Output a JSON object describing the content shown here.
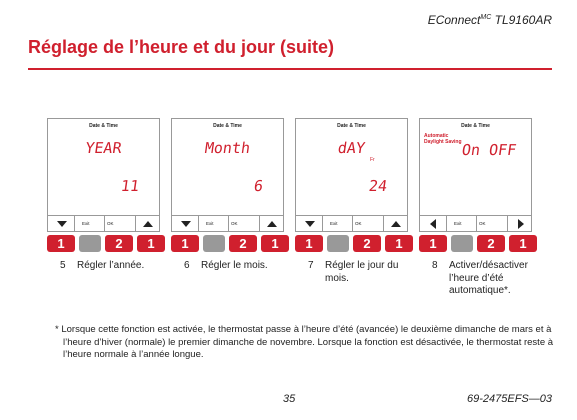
{
  "header": {
    "brand": "EConnect",
    "brand_sup": "MC",
    "model": "TL9160AR"
  },
  "title": "Réglage de l’heure et du jour (suite)",
  "panels": [
    {
      "screen_title": "Date & Time",
      "line1": "YEAR",
      "line2": "11",
      "exit": "Exit",
      "ok": "OK",
      "keys": [
        "1",
        "2",
        "1"
      ],
      "step": "5",
      "text": "Régler l’année."
    },
    {
      "screen_title": "Date & Time",
      "line1": "Month",
      "line2": "6",
      "exit": "Exit",
      "ok": "OK",
      "keys": [
        "1",
        "2",
        "1"
      ],
      "step": "6",
      "text": "Régler le mois."
    },
    {
      "screen_title": "Date & Time",
      "line1": "dAY",
      "sub": "Fr",
      "line2": "24",
      "exit": "Exit",
      "ok": "OK",
      "keys": [
        "1",
        "2",
        "1"
      ],
      "step": "7",
      "text": "Régler le jour du mois."
    },
    {
      "screen_title": "Date & Time",
      "note": "Automatic Daylight Saving",
      "line1": "On OFF",
      "exit": "Exit",
      "ok": "OK",
      "keys": [
        "1",
        "2",
        "1"
      ],
      "step": "8",
      "text": "Activer/désactiver l’heure d’été automatique*."
    }
  ],
  "footnote": "* Lorsque cette fonction est activée, le thermostat passe à l’heure d’été (avancée) le deuxième dimanche de mars et à l’heure d’hiver (normale) le premier dimanche de novembre. Lorsque la fonction est désactivée, le thermostat reste à l’heure normale à l’année longue.",
  "footer": {
    "page": "35",
    "code": "69-2475EFS—03"
  }
}
